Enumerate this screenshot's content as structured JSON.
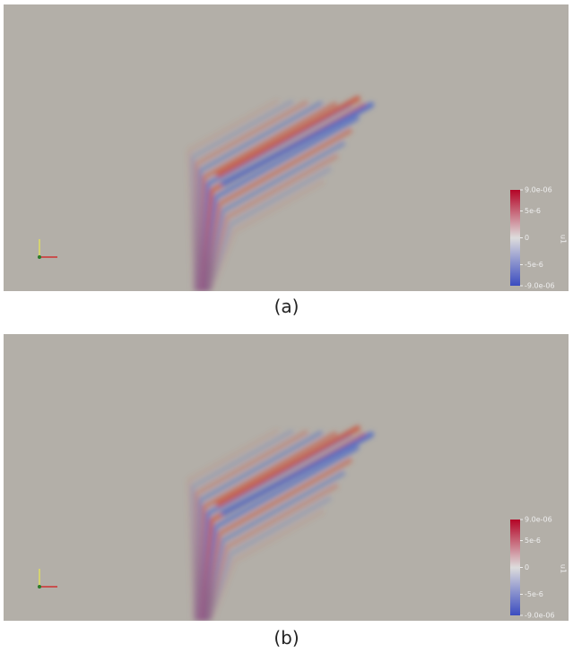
{
  "panels": [
    {
      "caption": "(a)",
      "colorbar": {
        "title": "u1",
        "ticks": [
          "9.0e-06",
          "5e-6",
          "0",
          "-5e-6",
          "-9.0e-06"
        ]
      }
    },
    {
      "caption": "(b)",
      "colorbar": {
        "title": "u1",
        "ticks": [
          "9.0e-06",
          "5e-6",
          "0",
          "-5e-6",
          "-9.0e-06"
        ]
      }
    }
  ]
}
